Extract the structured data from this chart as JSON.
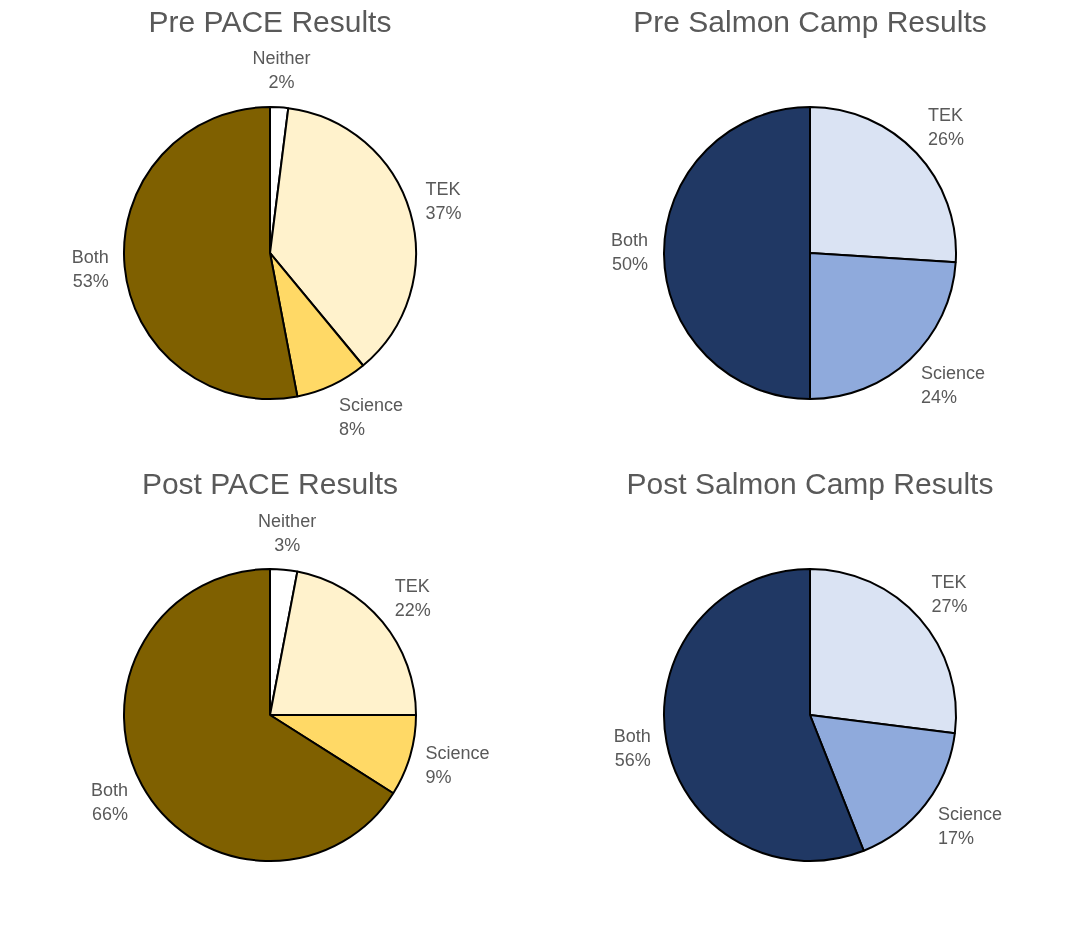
{
  "chart_data": [
    {
      "type": "pie",
      "title": "Pre PACE Results",
      "categories": [
        "Neither",
        "TEK",
        "Science",
        "Both"
      ],
      "values": [
        2,
        37,
        8,
        53
      ],
      "colors": [
        "#ffffff",
        "#fff2cc",
        "#ffd966",
        "#7f6000"
      ],
      "value_labels": [
        "2%",
        "37%",
        "8%",
        "53%"
      ],
      "legend": false
    },
    {
      "type": "pie",
      "title": "Pre Salmon Camp Results",
      "categories": [
        "TEK",
        "Science",
        "Both"
      ],
      "values": [
        26,
        24,
        50
      ],
      "colors": [
        "#dae3f3",
        "#8faadc",
        "#203864"
      ],
      "value_labels": [
        "26%",
        "24%",
        "50%"
      ],
      "legend": false
    },
    {
      "type": "pie",
      "title": "Post PACE Results",
      "categories": [
        "Neither",
        "TEK",
        "Science",
        "Both"
      ],
      "values": [
        3,
        22,
        9,
        66
      ],
      "colors": [
        "#ffffff",
        "#fff2cc",
        "#ffd966",
        "#7f6000"
      ],
      "value_labels": [
        "3%",
        "22%",
        "9%",
        "66%"
      ],
      "legend": false
    },
    {
      "type": "pie",
      "title": "Post Salmon Camp Results",
      "categories": [
        "TEK",
        "Science",
        "Both"
      ],
      "values": [
        27,
        17,
        56
      ],
      "colors": [
        "#dae3f3",
        "#8faadc",
        "#203864"
      ],
      "value_labels": [
        "27%",
        "17%",
        "56%"
      ],
      "legend": false
    }
  ]
}
